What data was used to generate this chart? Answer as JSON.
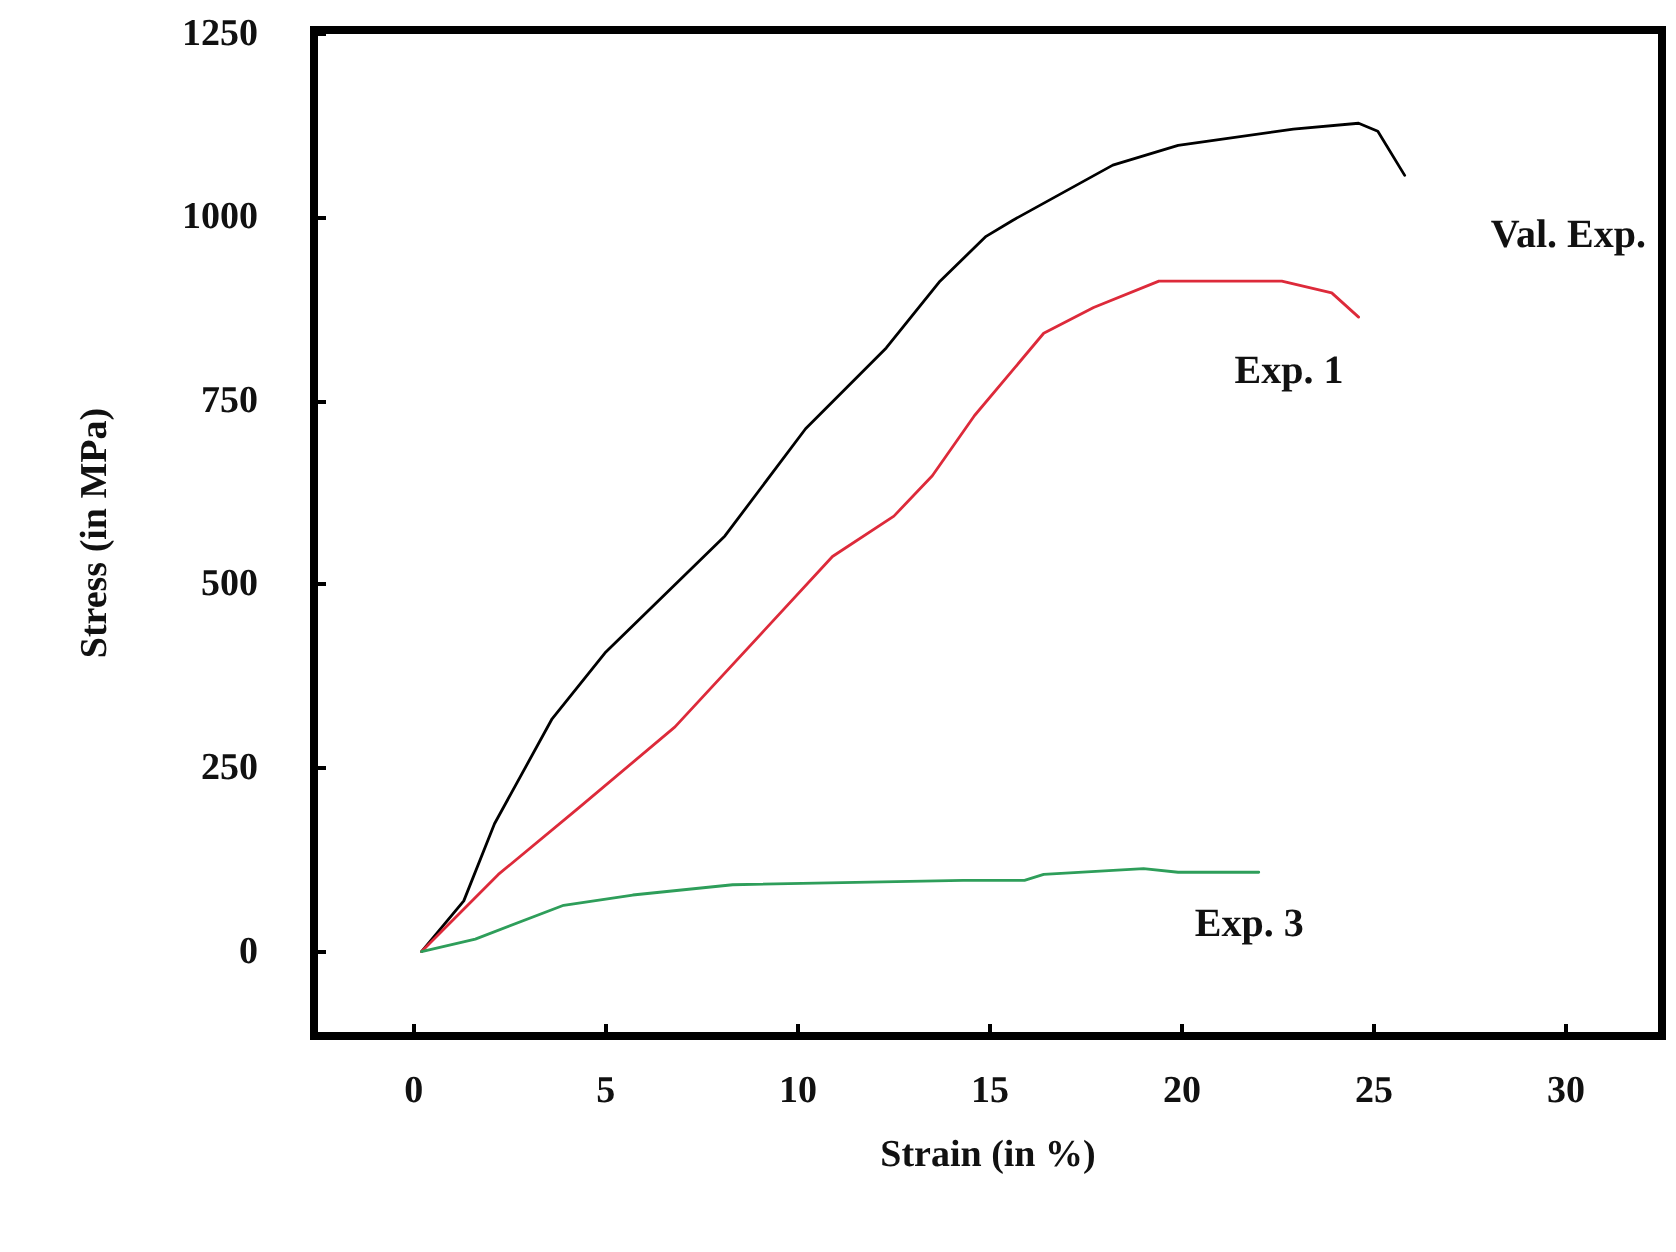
{
  "chart_data": {
    "type": "line",
    "xlabel": "Strain (in %)",
    "ylabel": "Stress (in MPa)",
    "xlim": [
      -2.6,
      32.5
    ],
    "xticks": [
      0,
      5,
      10,
      15,
      20,
      25,
      30
    ],
    "ylim": [
      -115,
      1255
    ],
    "yticks": [
      0,
      250,
      500,
      750,
      1000,
      1250
    ],
    "grid": false,
    "legend": false,
    "marker": "none",
    "line_style": "solid",
    "series": [
      {
        "name": "Val. Exp.",
        "color": "#000000",
        "x": [
          0.2,
          1.3,
          2.1,
          3.6,
          5.0,
          8.1,
          10.2,
          12.3,
          13.7,
          14.9,
          15.6,
          18.2,
          19.9,
          22.9,
          24.6,
          25.1,
          25.8
        ],
        "values": [
          0,
          69,
          174,
          317,
          408,
          566,
          712,
          822,
          913,
          974,
          996,
          1071,
          1098,
          1120,
          1128,
          1117,
          1057
        ]
      },
      {
        "name": "Exp. 1",
        "color": "#dd2a3a",
        "x": [
          0.2,
          2.2,
          4.3,
          6.8,
          9.1,
          10.9,
          12.5,
          13.5,
          14.6,
          16.4,
          17.7,
          19.4,
          22.6,
          23.9,
          24.6
        ],
        "values": [
          0,
          105,
          196,
          306,
          436,
          538,
          593,
          648,
          730,
          842,
          877,
          913,
          913,
          897,
          864
        ]
      },
      {
        "name": "Exp. 3",
        "color": "#2e9e5a",
        "x": [
          0.2,
          1.6,
          3.9,
          5.7,
          8.3,
          14.3,
          15.9,
          16.4,
          19.0,
          19.9,
          22.0
        ],
        "values": [
          0,
          17,
          63,
          77,
          91,
          97,
          97,
          105,
          113,
          108,
          108
        ]
      }
    ]
  }
}
